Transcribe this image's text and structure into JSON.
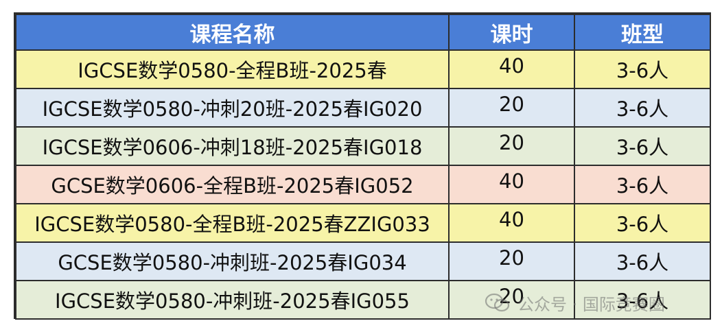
{
  "table": {
    "headers": [
      "课程名称",
      "课时",
      "班型"
    ],
    "rows": [
      {
        "name": "IGCSE数学0580-全程B班-2025春",
        "hours": "40",
        "type": "3-6人"
      },
      {
        "name": "IGCSE数学0580-冲刺20班-2025春IG020",
        "hours": "20",
        "type": "3-6人"
      },
      {
        "name": "IGCSE数学0606-冲刺18班-2025春IG018",
        "hours": "20",
        "type": "3-6人"
      },
      {
        "name": "GCSE数学0606-全程B班-2025春IG052",
        "hours": "40",
        "type": "3-6人"
      },
      {
        "name": "IGCSE数学0580-全程B班-2025春ZZIG033",
        "hours": "40",
        "type": "3-6人"
      },
      {
        "name": "GCSE数学0580-冲刺班-2025春IG034",
        "hours": "20",
        "type": "3-6人"
      },
      {
        "name": "IGCSE数学0580-冲刺班-2025春IG055",
        "hours": "20",
        "type": "3-6人"
      }
    ]
  },
  "watermark": {
    "text": "公众号 · 国际竞赛圈",
    "icon": "wechat-icon"
  },
  "colors": {
    "header_bg": "#4a7ed6",
    "row_yellow": "#f7f3a8",
    "row_blue": "#dee8f3",
    "row_green": "#e5edd8",
    "row_peach": "#f9ddd1"
  }
}
